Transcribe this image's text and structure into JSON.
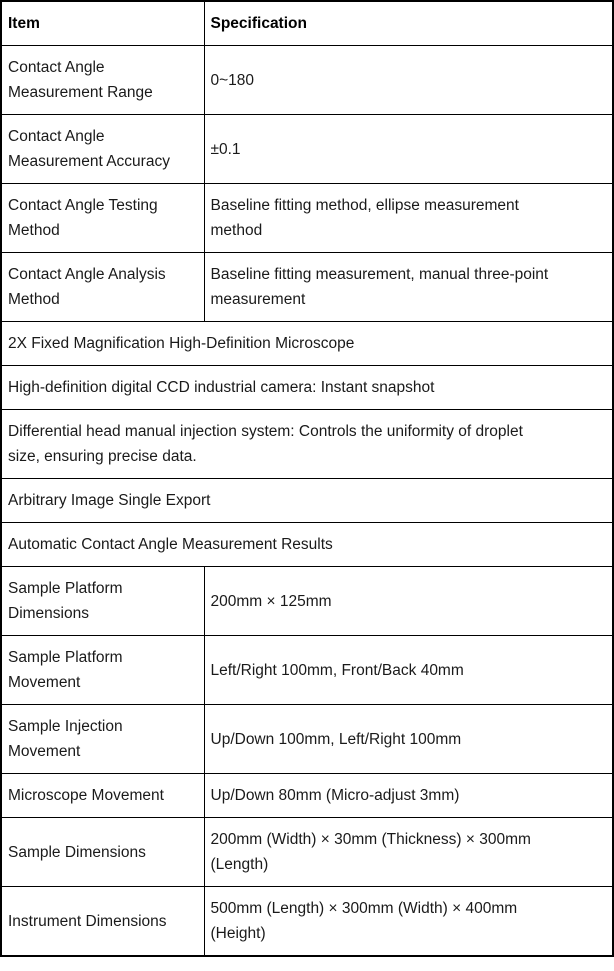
{
  "table": {
    "header": {
      "item": "Item",
      "specification": "Specification"
    },
    "rows": [
      {
        "type": "pair",
        "item": "Contact Angle\nMeasurement Range",
        "spec": "0~180"
      },
      {
        "type": "pair",
        "item": "Contact Angle\nMeasurement Accuracy",
        "spec": "±0.1"
      },
      {
        "type": "pair",
        "item": "Contact Angle Testing\nMethod",
        "spec": "Baseline fitting method, ellipse measurement\nmethod"
      },
      {
        "type": "pair",
        "item": "Contact Angle Analysis\nMethod",
        "spec": "Baseline fitting measurement, manual three-point\nmeasurement"
      },
      {
        "type": "full",
        "text": "2X Fixed Magnification High-Definition Microscope"
      },
      {
        "type": "full",
        "text": "High-definition digital CCD industrial camera: Instant snapshot"
      },
      {
        "type": "full",
        "text": "Differential head manual injection system: Controls the uniformity of droplet\nsize, ensuring precise data."
      },
      {
        "type": "full",
        "text": "Arbitrary Image Single Export"
      },
      {
        "type": "full",
        "text": "Automatic Contact Angle Measurement Results"
      },
      {
        "type": "pair",
        "item": "Sample Platform\nDimensions",
        "spec": "200mm × 125mm"
      },
      {
        "type": "pair",
        "item": "Sample Platform\nMovement",
        "spec": "Left/Right 100mm, Front/Back 40mm"
      },
      {
        "type": "pair",
        "item": "Sample Injection\nMovement",
        "spec": "Up/Down 100mm, Left/Right 100mm"
      },
      {
        "type": "pair",
        "item": "Microscope Movement",
        "spec": "Up/Down 80mm (Micro-adjust 3mm)"
      },
      {
        "type": "pair",
        "item": "Sample Dimensions",
        "spec": "200mm (Width) × 30mm (Thickness) × 300mm\n(Length)"
      },
      {
        "type": "pair",
        "item": "Instrument Dimensions",
        "spec": "500mm (Length) × 300mm (Width) × 400mm\n(Height)"
      }
    ],
    "colors": {
      "border": "#000000",
      "text": "#1a1a1a",
      "background": "#ffffff"
    }
  }
}
